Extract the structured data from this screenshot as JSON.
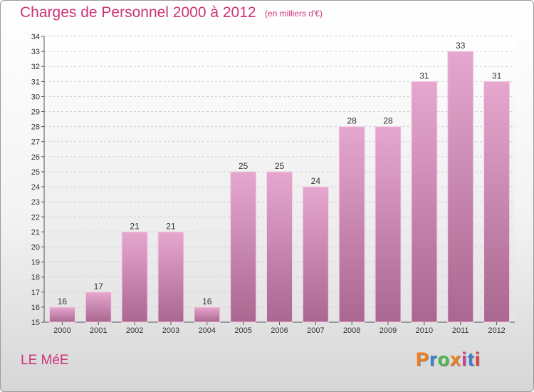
{
  "header": {
    "title": "Charges de Personnel 2000 à 2012",
    "subtitle": "(en milliers d'€)"
  },
  "footer": {
    "city": "LE MéE",
    "logo_text": "Proxiti",
    "logo_colors": [
      "#ef7d1a",
      "#3a7fd0",
      "#4cb84c",
      "#ef7d1a",
      "#d23c8c",
      "#3a7fd0",
      "#e23b3b"
    ]
  },
  "colors": {
    "title": "#cc3377",
    "bar_top": "#e6a7cf",
    "bar_bottom": "#aa6790",
    "bar_border": "#f2d2e6"
  },
  "chart_data": {
    "type": "bar",
    "categories": [
      "2000",
      "2001",
      "2002",
      "2003",
      "2004",
      "2005",
      "2006",
      "2007",
      "2008",
      "2009",
      "2010",
      "2011",
      "2012"
    ],
    "values": [
      16,
      17,
      21,
      21,
      16,
      25,
      25,
      24,
      28,
      28,
      31,
      33,
      31
    ],
    "ylim": [
      15,
      34
    ],
    "yticks": [
      15,
      16,
      17,
      18,
      19,
      20,
      21,
      22,
      23,
      24,
      25,
      26,
      27,
      28,
      29,
      30,
      31,
      32,
      33,
      34
    ],
    "grid": true,
    "data_labels": true
  }
}
